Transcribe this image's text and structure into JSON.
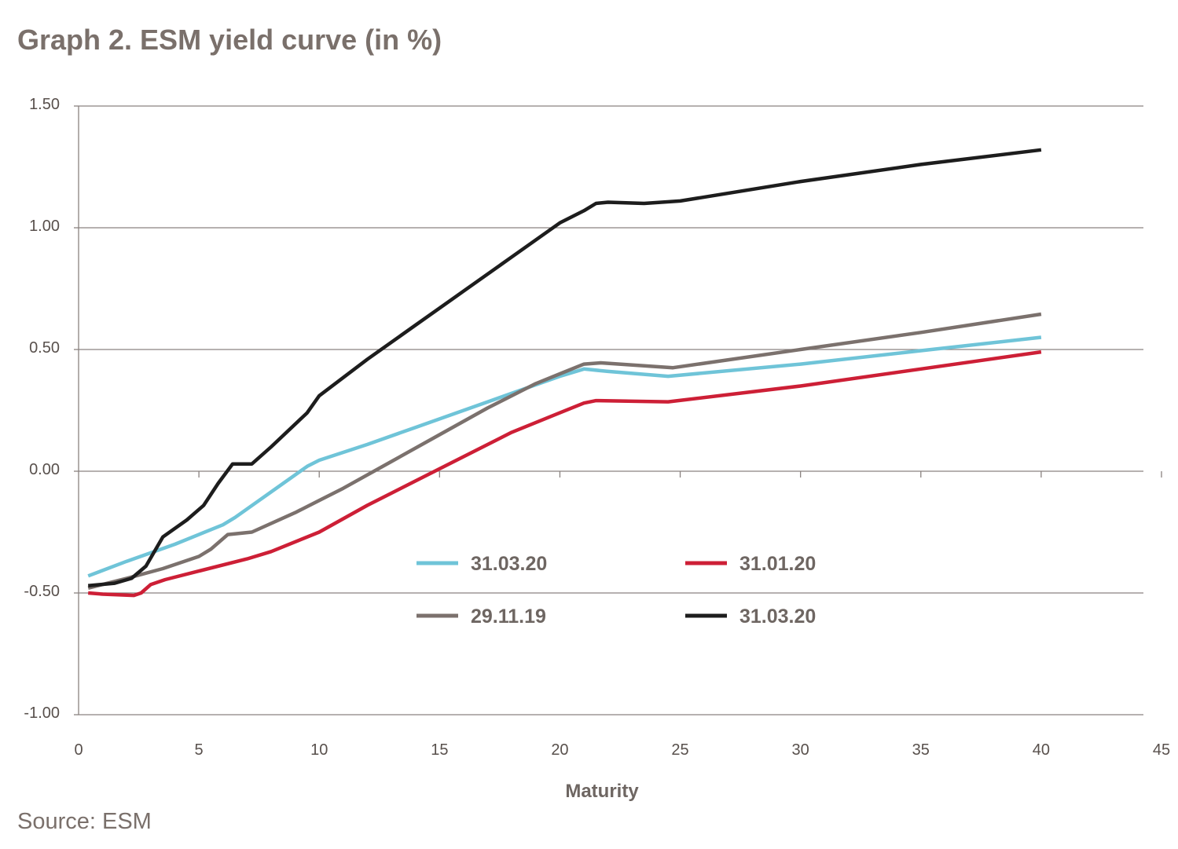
{
  "title": "Graph 2. ESM yield curve (in %)",
  "source": "Source:  ESM",
  "chart_data": {
    "type": "line",
    "title": "Graph 2. ESM yield curve (in %)",
    "xlabel": "Maturity",
    "ylabel": "",
    "xlim": [
      0,
      45
    ],
    "ylim": [
      -1.0,
      1.5
    ],
    "x_ticks": [
      "0",
      "5",
      "10",
      "15",
      "20",
      "25",
      "30",
      "35",
      "40",
      "45"
    ],
    "y_ticks": [
      "1.50",
      "1.00",
      "0.50",
      "0.00",
      "-0.50",
      "-1.00"
    ],
    "grid": "horizontal",
    "legend_position": "center",
    "series": [
      {
        "name": "31.03.20",
        "color": "#6fc4d8",
        "points": [
          [
            0.4,
            -0.43
          ],
          [
            2,
            -0.37
          ],
          [
            4,
            -0.3
          ],
          [
            6,
            -0.22
          ],
          [
            6.5,
            -0.19
          ],
          [
            7.5,
            -0.12
          ],
          [
            8.5,
            -0.05
          ],
          [
            9.5,
            0.02
          ],
          [
            10,
            0.045
          ],
          [
            12,
            0.11
          ],
          [
            14,
            0.18
          ],
          [
            16,
            0.25
          ],
          [
            18,
            0.32
          ],
          [
            20,
            0.39
          ],
          [
            21,
            0.42
          ],
          [
            22,
            0.41
          ],
          [
            24.5,
            0.39
          ],
          [
            30,
            0.44
          ],
          [
            35,
            0.495
          ],
          [
            40,
            0.55
          ]
        ]
      },
      {
        "name": "31.01.20",
        "color": "#cd1f36",
        "points": [
          [
            0.4,
            -0.5
          ],
          [
            1,
            -0.505
          ],
          [
            2.3,
            -0.51
          ],
          [
            2.6,
            -0.5
          ],
          [
            3,
            -0.465
          ],
          [
            3.6,
            -0.445
          ],
          [
            5,
            -0.41
          ],
          [
            7,
            -0.36
          ],
          [
            8,
            -0.33
          ],
          [
            10,
            -0.25
          ],
          [
            12,
            -0.14
          ],
          [
            14,
            -0.04
          ],
          [
            16,
            0.06
          ],
          [
            18,
            0.16
          ],
          [
            20,
            0.24
          ],
          [
            21,
            0.28
          ],
          [
            21.5,
            0.29
          ],
          [
            24.5,
            0.285
          ],
          [
            30,
            0.35
          ],
          [
            35,
            0.42
          ],
          [
            40,
            0.49
          ]
        ]
      },
      {
        "name": "29.11.19",
        "color": "#7b716d",
        "points": [
          [
            0.4,
            -0.48
          ],
          [
            2,
            -0.44
          ],
          [
            3.5,
            -0.4
          ],
          [
            5,
            -0.35
          ],
          [
            5.5,
            -0.32
          ],
          [
            6.2,
            -0.26
          ],
          [
            7.2,
            -0.25
          ],
          [
            9,
            -0.17
          ],
          [
            11,
            -0.07
          ],
          [
            13,
            0.04
          ],
          [
            15,
            0.15
          ],
          [
            17,
            0.26
          ],
          [
            19,
            0.36
          ],
          [
            20,
            0.4
          ],
          [
            21,
            0.44
          ],
          [
            21.7,
            0.445
          ],
          [
            24.7,
            0.425
          ],
          [
            30,
            0.5
          ],
          [
            35,
            0.57
          ],
          [
            40,
            0.645
          ]
        ]
      },
      {
        "name": "31.03.20",
        "color": "#1d1d1d",
        "points": [
          [
            0.4,
            -0.47
          ],
          [
            1.5,
            -0.46
          ],
          [
            2.2,
            -0.44
          ],
          [
            2.8,
            -0.39
          ],
          [
            3.5,
            -0.27
          ],
          [
            4.5,
            -0.2
          ],
          [
            5.2,
            -0.14
          ],
          [
            5.8,
            -0.05
          ],
          [
            6.4,
            0.03
          ],
          [
            6.8,
            0.03
          ],
          [
            7.2,
            0.03
          ],
          [
            8,
            0.1
          ],
          [
            9.5,
            0.24
          ],
          [
            10,
            0.31
          ],
          [
            12,
            0.46
          ],
          [
            14,
            0.6
          ],
          [
            16,
            0.74
          ],
          [
            18,
            0.88
          ],
          [
            20,
            1.02
          ],
          [
            21,
            1.07
          ],
          [
            21.5,
            1.1
          ],
          [
            22,
            1.105
          ],
          [
            23.5,
            1.1
          ],
          [
            25,
            1.11
          ],
          [
            30,
            1.19
          ],
          [
            35,
            1.26
          ],
          [
            40,
            1.32
          ]
        ]
      }
    ]
  }
}
